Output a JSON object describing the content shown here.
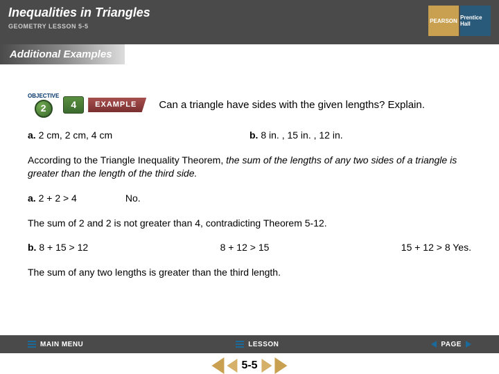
{
  "header": {
    "title": "Inequalities in Triangles",
    "subtitle": "GEOMETRY LESSON 5-5",
    "logo_left": "PEARSON",
    "logo_right": "Prentice Hall"
  },
  "banner": "Additional Examples",
  "example": {
    "objective_label": "OBJECTIVE",
    "objective_num": "2",
    "ex_num": "4",
    "ex_label": "EXAMPLE",
    "question": "Can a triangle have sides with the given lengths? Explain."
  },
  "items": {
    "a_label": "a.",
    "a_text": " 2 cm, 2 cm, 4 cm",
    "b_label": "b.",
    "b_text": " 8 in. , 15 in. , 12 in."
  },
  "theorem": {
    "lead": "According to the Triangle Inequality Theorem, ",
    "ital": "the sum of the lengths of any two sides of a triangle is greater than the length of the third side."
  },
  "work_a": {
    "label": "a.",
    "expr": " 2 + 2 > 4",
    "ans": "No."
  },
  "explain_a": "The sum of 2 and 2 is not greater than 4, contradicting Theorem 5-12.",
  "work_b": {
    "label": "b.",
    "e1": " 8 + 15 > 12",
    "e2": "8 + 12 > 15",
    "e3": "15 + 12 > 8  Yes."
  },
  "explain_b": "The sum of any two lengths is greater than the third length.",
  "footer": {
    "menu": "MAIN MENU",
    "lesson": "LESSON",
    "page": "PAGE",
    "lesson_num": "5-5"
  }
}
